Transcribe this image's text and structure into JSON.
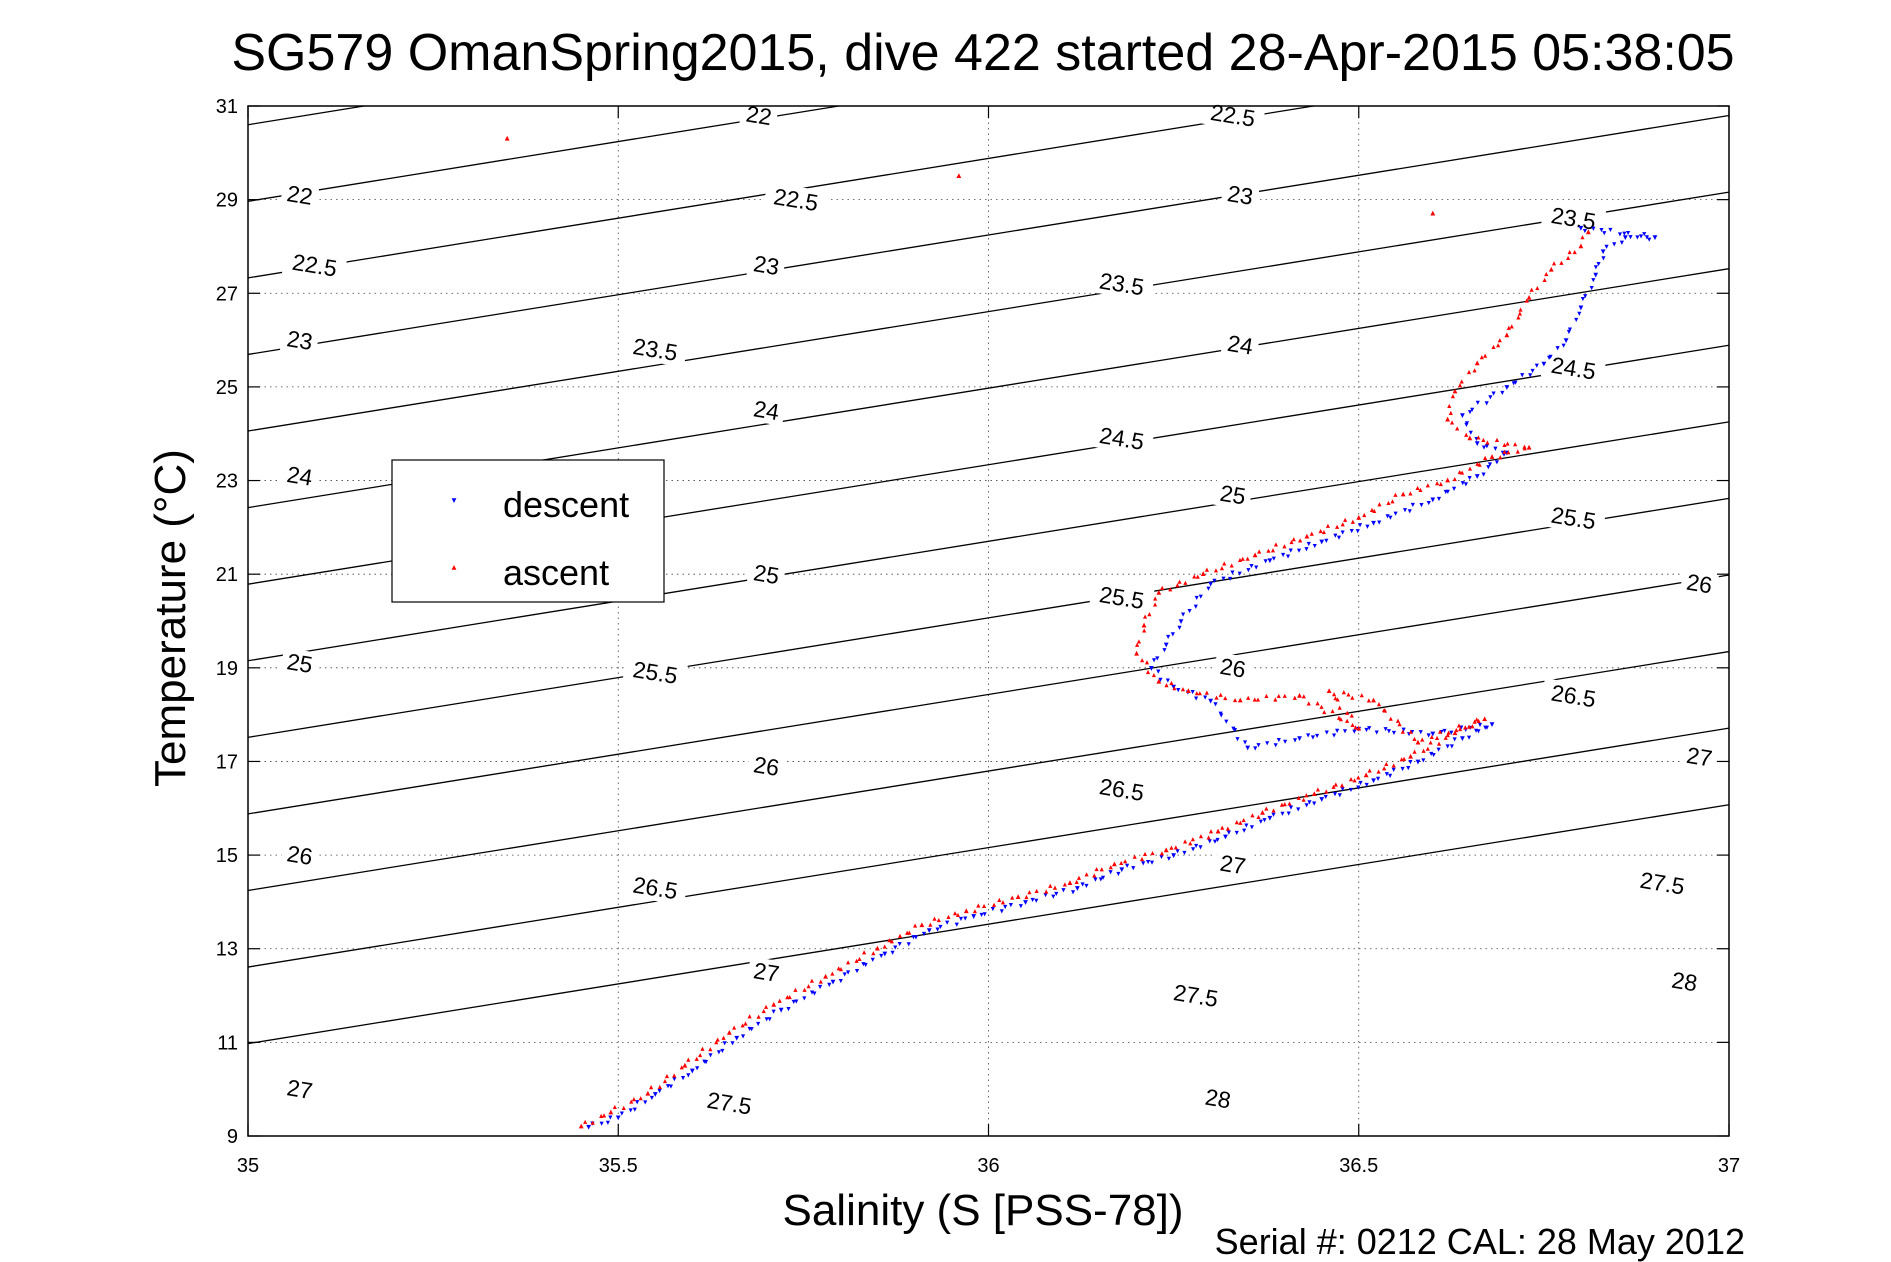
{
  "chart_data": {
    "type": "scatter",
    "title": "SG579 OmanSpring2015, dive 422 started 28-Apr-2015 05:38:05",
    "xlabel": "Salinity (S [PSS-78])",
    "ylabel": "Temperature (°C)",
    "footer": "Serial #: 0212  CAL: 28 May 2012",
    "xlim": [
      35,
      37
    ],
    "ylim": [
      9,
      31
    ],
    "xticks": [
      35,
      35.5,
      36,
      36.5,
      37
    ],
    "xtick_labels": [
      "35",
      "35.5",
      "36",
      "36.5",
      "37"
    ],
    "yticks": [
      9,
      11,
      13,
      15,
      17,
      19,
      21,
      23,
      25,
      27,
      29,
      31
    ],
    "ytick_labels": [
      "9",
      "11",
      "13",
      "15",
      "17",
      "19",
      "21",
      "23",
      "25",
      "27",
      "29",
      "31"
    ],
    "grid": true,
    "legend_position": "middle-left",
    "density_contours": {
      "levels": [
        22,
        22.5,
        23,
        23.5,
        24,
        24.5,
        25,
        25.5,
        26,
        26.5,
        27,
        27.5,
        28
      ],
      "labels": [
        {
          "text": "22",
          "s": 35.07,
          "t": 29.1
        },
        {
          "text": "22",
          "s": 35.69,
          "t": 30.8
        },
        {
          "text": "22.5",
          "s": 35.09,
          "t": 27.6
        },
        {
          "text": "22.5",
          "s": 35.74,
          "t": 29.0
        },
        {
          "text": "22.5",
          "s": 36.33,
          "t": 30.8
        },
        {
          "text": "23",
          "s": 35.07,
          "t": 26.0
        },
        {
          "text": "23",
          "s": 35.7,
          "t": 27.6
        },
        {
          "text": "23",
          "s": 36.34,
          "t": 29.1
        },
        {
          "text": "23.5",
          "s": 35.55,
          "t": 25.8
        },
        {
          "text": "23.5",
          "s": 36.18,
          "t": 27.2
        },
        {
          "text": "23.5",
          "s": 36.79,
          "t": 28.6
        },
        {
          "text": "24",
          "s": 35.07,
          "t": 23.1
        },
        {
          "text": "24",
          "s": 35.7,
          "t": 24.5
        },
        {
          "text": "24",
          "s": 36.34,
          "t": 25.9
        },
        {
          "text": "24.5",
          "s": 36.18,
          "t": 23.9
        },
        {
          "text": "24.5",
          "s": 36.79,
          "t": 25.4
        },
        {
          "text": "25",
          "s": 35.07,
          "t": 19.1
        },
        {
          "text": "25",
          "s": 35.7,
          "t": 21.0
        },
        {
          "text": "25",
          "s": 36.33,
          "t": 22.7
        },
        {
          "text": "25.5",
          "s": 35.55,
          "t": 18.9
        },
        {
          "text": "25.5",
          "s": 36.18,
          "t": 20.5
        },
        {
          "text": "25.5",
          "s": 36.79,
          "t": 22.2
        },
        {
          "text": "26",
          "s": 35.07,
          "t": 15.0
        },
        {
          "text": "26",
          "s": 35.7,
          "t": 16.9
        },
        {
          "text": "26",
          "s": 36.33,
          "t": 19.0
        },
        {
          "text": "26",
          "s": 36.96,
          "t": 20.8
        },
        {
          "text": "26.5",
          "s": 35.55,
          "t": 14.3
        },
        {
          "text": "26.5",
          "s": 36.18,
          "t": 16.4
        },
        {
          "text": "26.5",
          "s": 36.79,
          "t": 18.4
        },
        {
          "text": "27",
          "s": 35.07,
          "t": 10.0
        },
        {
          "text": "27",
          "s": 35.7,
          "t": 12.5
        },
        {
          "text": "27",
          "s": 36.33,
          "t": 14.8
        },
        {
          "text": "27",
          "s": 36.96,
          "t": 17.1
        },
        {
          "text": "27.5",
          "s": 35.65,
          "t": 9.7
        },
        {
          "text": "27.5",
          "s": 36.28,
          "t": 12.0
        },
        {
          "text": "27.5",
          "s": 36.91,
          "t": 14.4
        },
        {
          "text": "28",
          "s": 36.31,
          "t": 9.8
        },
        {
          "text": "28",
          "s": 36.94,
          "t": 12.3
        }
      ]
    },
    "series": [
      {
        "name": "descent",
        "color": "#0000ff",
        "marker": "triangle-down",
        "points": [
          [
            35.46,
            9.2
          ],
          [
            35.5,
            9.4
          ],
          [
            35.55,
            9.9
          ],
          [
            35.6,
            10.4
          ],
          [
            35.66,
            11.1
          ],
          [
            35.72,
            11.7
          ],
          [
            35.79,
            12.3
          ],
          [
            35.86,
            12.9
          ],
          [
            35.92,
            13.4
          ],
          [
            35.98,
            13.7
          ],
          [
            36.05,
            14.0
          ],
          [
            36.12,
            14.3
          ],
          [
            36.18,
            14.7
          ],
          [
            36.25,
            15.0
          ],
          [
            36.32,
            15.4
          ],
          [
            36.38,
            15.8
          ],
          [
            36.45,
            16.2
          ],
          [
            36.52,
            16.6
          ],
          [
            36.58,
            17.0
          ],
          [
            36.64,
            17.5
          ],
          [
            36.68,
            17.8
          ],
          [
            36.6,
            17.6
          ],
          [
            36.5,
            17.7
          ],
          [
            36.42,
            17.5
          ],
          [
            36.35,
            17.3
          ],
          [
            36.3,
            18.3
          ],
          [
            36.25,
            18.6
          ],
          [
            36.22,
            19.0
          ],
          [
            36.24,
            19.5
          ],
          [
            36.26,
            20.0
          ],
          [
            36.3,
            20.8
          ],
          [
            36.38,
            21.3
          ],
          [
            36.45,
            21.7
          ],
          [
            36.52,
            22.1
          ],
          [
            36.6,
            22.6
          ],
          [
            36.66,
            23.1
          ],
          [
            36.7,
            23.6
          ],
          [
            36.66,
            23.8
          ],
          [
            36.64,
            24.4
          ],
          [
            36.7,
            25.0
          ],
          [
            36.75,
            25.5
          ],
          [
            36.78,
            26.0
          ],
          [
            36.8,
            26.7
          ],
          [
            36.82,
            27.4
          ],
          [
            36.83,
            27.9
          ],
          [
            36.86,
            28.2
          ],
          [
            36.9,
            28.2
          ],
          [
            36.8,
            28.4
          ]
        ]
      },
      {
        "name": "ascent",
        "color": "#ff0000",
        "marker": "triangle-up",
        "points": [
          [
            35.45,
            9.2
          ],
          [
            35.49,
            9.5
          ],
          [
            35.54,
            9.9
          ],
          [
            35.59,
            10.5
          ],
          [
            35.65,
            11.2
          ],
          [
            35.71,
            11.8
          ],
          [
            35.78,
            12.4
          ],
          [
            35.85,
            13.0
          ],
          [
            35.91,
            13.5
          ],
          [
            35.97,
            13.8
          ],
          [
            36.04,
            14.1
          ],
          [
            36.11,
            14.4
          ],
          [
            36.17,
            14.8
          ],
          [
            36.24,
            15.1
          ],
          [
            36.31,
            15.5
          ],
          [
            36.37,
            15.9
          ],
          [
            36.44,
            16.3
          ],
          [
            36.51,
            16.7
          ],
          [
            36.57,
            17.1
          ],
          [
            36.63,
            17.6
          ],
          [
            36.67,
            17.9
          ],
          [
            36.58,
            17.4
          ],
          [
            36.52,
            18.3
          ],
          [
            36.46,
            18.5
          ],
          [
            36.5,
            17.7
          ],
          [
            36.42,
            18.4
          ],
          [
            36.34,
            18.3
          ],
          [
            36.27,
            18.5
          ],
          [
            36.23,
            18.7
          ],
          [
            36.2,
            19.3
          ],
          [
            36.21,
            19.9
          ],
          [
            36.23,
            20.6
          ],
          [
            36.29,
            21.0
          ],
          [
            36.36,
            21.4
          ],
          [
            36.43,
            21.8
          ],
          [
            36.5,
            22.2
          ],
          [
            36.56,
            22.7
          ],
          [
            36.62,
            23.0
          ],
          [
            36.68,
            23.5
          ],
          [
            36.73,
            23.7
          ],
          [
            36.65,
            23.9
          ],
          [
            36.62,
            24.3
          ],
          [
            36.63,
            24.9
          ],
          [
            36.66,
            25.5
          ],
          [
            36.7,
            26.1
          ],
          [
            36.73,
            26.9
          ],
          [
            36.76,
            27.5
          ],
          [
            36.8,
            28.0
          ],
          [
            36.81,
            28.3
          ],
          [
            36.6,
            28.7
          ],
          [
            35.96,
            29.5
          ],
          [
            35.35,
            30.3
          ]
        ]
      }
    ]
  }
}
